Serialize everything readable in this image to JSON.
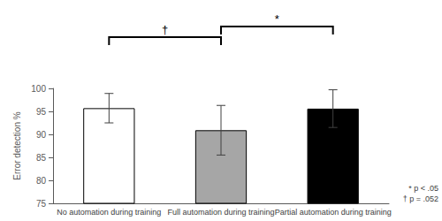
{
  "chart_data": {
    "type": "bar",
    "y_label": "Error detection %",
    "categories": [
      "No automation during training",
      "Full automation during training",
      "Partial automation during training"
    ],
    "values": [
      95.7,
      90.9,
      95.6
    ],
    "errors": [
      3.2,
      5.4,
      4.1
    ],
    "colors": [
      "#ffffff",
      "#a6a6a6",
      "#000000"
    ],
    "ylim": [
      75,
      100
    ],
    "yticks": [
      75,
      80,
      85,
      90,
      95,
      100
    ],
    "grid": false,
    "annotations": [
      {
        "between": [
          "No automation during training",
          "Full automation during training"
        ],
        "label": "†"
      },
      {
        "between": [
          "Full automation during training",
          "Partial automation during training"
        ],
        "label": "*"
      }
    ],
    "notes": [
      "* p < .05",
      "† p = .052"
    ]
  }
}
